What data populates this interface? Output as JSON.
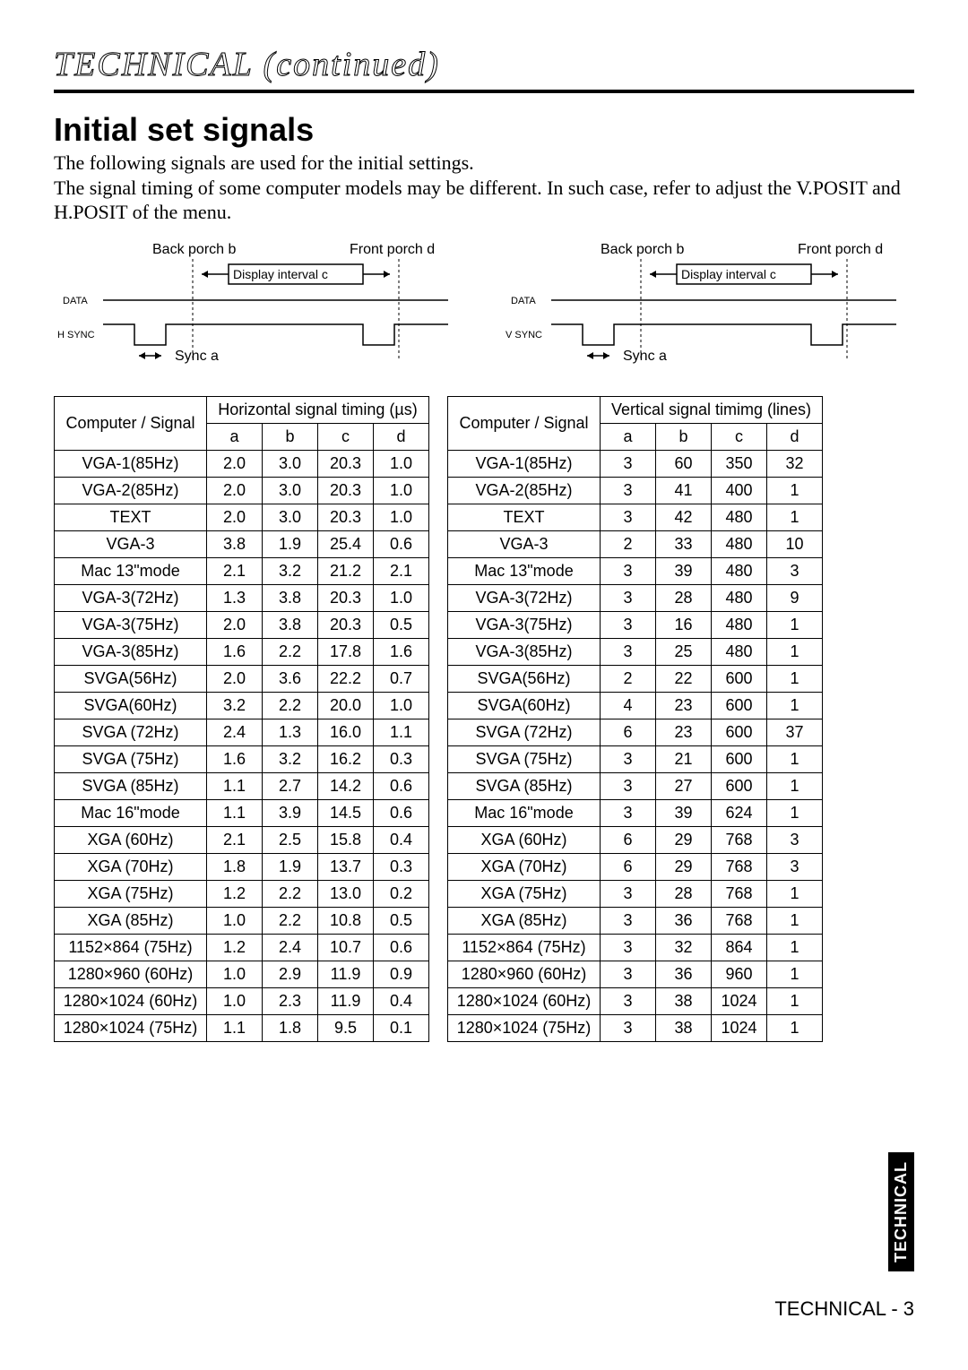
{
  "page": {
    "outline_title": "TECHNICAL (continued)",
    "section_heading": "Initial set signals",
    "intro_line1": "The following signals are used for the initial settings.",
    "intro_line2": "The signal timing of some computer models may be different. In such case, refer to adjust the V.POSIT and H.POSIT of the menu.",
    "side_tab": "TECHNICAL",
    "footer": "TECHNICAL - 3"
  },
  "diagram_labels": {
    "back_porch": "Back porch b",
    "front_porch": "Front porch d",
    "display_interval": "Display interval c",
    "sync": "Sync a",
    "data": "DATA",
    "hsync": "H SYNC",
    "vsync": "V SYNC"
  },
  "diagram_style": {
    "stroke": "#000000",
    "stroke_width": 1.5,
    "dash": "3,3"
  },
  "horizontal_table": {
    "header": "Computer / Signal",
    "group_header": "Horizontal signal timing (µs)",
    "subs": [
      "a",
      "b",
      "c",
      "d"
    ],
    "rows": [
      [
        "VGA-1(85Hz)",
        "2.0",
        "3.0",
        "20.3",
        "1.0"
      ],
      [
        "VGA-2(85Hz)",
        "2.0",
        "3.0",
        "20.3",
        "1.0"
      ],
      [
        "TEXT",
        "2.0",
        "3.0",
        "20.3",
        "1.0"
      ],
      [
        "VGA-3",
        "3.8",
        "1.9",
        "25.4",
        "0.6"
      ],
      [
        "Mac 13\"mode",
        "2.1",
        "3.2",
        "21.2",
        "2.1"
      ],
      [
        "VGA-3(72Hz)",
        "1.3",
        "3.8",
        "20.3",
        "1.0"
      ],
      [
        "VGA-3(75Hz)",
        "2.0",
        "3.8",
        "20.3",
        "0.5"
      ],
      [
        "VGA-3(85Hz)",
        "1.6",
        "2.2",
        "17.8",
        "1.6"
      ],
      [
        "SVGA(56Hz)",
        "2.0",
        "3.6",
        "22.2",
        "0.7"
      ],
      [
        "SVGA(60Hz)",
        "3.2",
        "2.2",
        "20.0",
        "1.0"
      ],
      [
        "SVGA (72Hz)",
        "2.4",
        "1.3",
        "16.0",
        "1.1"
      ],
      [
        "SVGA (75Hz)",
        "1.6",
        "3.2",
        "16.2",
        "0.3"
      ],
      [
        "SVGA (85Hz)",
        "1.1",
        "2.7",
        "14.2",
        "0.6"
      ],
      [
        "Mac 16\"mode",
        "1.1",
        "3.9",
        "14.5",
        "0.6"
      ],
      [
        "XGA (60Hz)",
        "2.1",
        "2.5",
        "15.8",
        "0.4"
      ],
      [
        "XGA (70Hz)",
        "1.8",
        "1.9",
        "13.7",
        "0.3"
      ],
      [
        "XGA (75Hz)",
        "1.2",
        "2.2",
        "13.0",
        "0.2"
      ],
      [
        "XGA (85Hz)",
        "1.0",
        "2.2",
        "10.8",
        "0.5"
      ],
      [
        "1152×864 (75Hz)",
        "1.2",
        "2.4",
        "10.7",
        "0.6"
      ],
      [
        "1280×960 (60Hz)",
        "1.0",
        "2.9",
        "11.9",
        "0.9"
      ],
      [
        "1280×1024 (60Hz)",
        "1.0",
        "2.3",
        "11.9",
        "0.4"
      ],
      [
        "1280×1024 (75Hz)",
        "1.1",
        "1.8",
        "9.5",
        "0.1"
      ]
    ]
  },
  "vertical_table": {
    "header": "Computer / Signal",
    "group_header": "Vertical signal timimg (lines)",
    "subs": [
      "a",
      "b",
      "c",
      "d"
    ],
    "rows": [
      [
        "VGA-1(85Hz)",
        "3",
        "60",
        "350",
        "32"
      ],
      [
        "VGA-2(85Hz)",
        "3",
        "41",
        "400",
        "1"
      ],
      [
        "TEXT",
        "3",
        "42",
        "480",
        "1"
      ],
      [
        "VGA-3",
        "2",
        "33",
        "480",
        "10"
      ],
      [
        "Mac 13\"mode",
        "3",
        "39",
        "480",
        "3"
      ],
      [
        "VGA-3(72Hz)",
        "3",
        "28",
        "480",
        "9"
      ],
      [
        "VGA-3(75Hz)",
        "3",
        "16",
        "480",
        "1"
      ],
      [
        "VGA-3(85Hz)",
        "3",
        "25",
        "480",
        "1"
      ],
      [
        "SVGA(56Hz)",
        "2",
        "22",
        "600",
        "1"
      ],
      [
        "SVGA(60Hz)",
        "4",
        "23",
        "600",
        "1"
      ],
      [
        "SVGA (72Hz)",
        "6",
        "23",
        "600",
        "37"
      ],
      [
        "SVGA (75Hz)",
        "3",
        "21",
        "600",
        "1"
      ],
      [
        "SVGA (85Hz)",
        "3",
        "27",
        "600",
        "1"
      ],
      [
        "Mac 16\"mode",
        "3",
        "39",
        "624",
        "1"
      ],
      [
        "XGA (60Hz)",
        "6",
        "29",
        "768",
        "3"
      ],
      [
        "XGA (70Hz)",
        "6",
        "29",
        "768",
        "3"
      ],
      [
        "XGA (75Hz)",
        "3",
        "28",
        "768",
        "1"
      ],
      [
        "XGA (85Hz)",
        "3",
        "36",
        "768",
        "1"
      ],
      [
        "1152×864 (75Hz)",
        "3",
        "32",
        "864",
        "1"
      ],
      [
        "1280×960 (60Hz)",
        "3",
        "36",
        "960",
        "1"
      ],
      [
        "1280×1024 (60Hz)",
        "3",
        "38",
        "1024",
        "1"
      ],
      [
        "1280×1024 (75Hz)",
        "3",
        "38",
        "1024",
        "1"
      ]
    ]
  }
}
